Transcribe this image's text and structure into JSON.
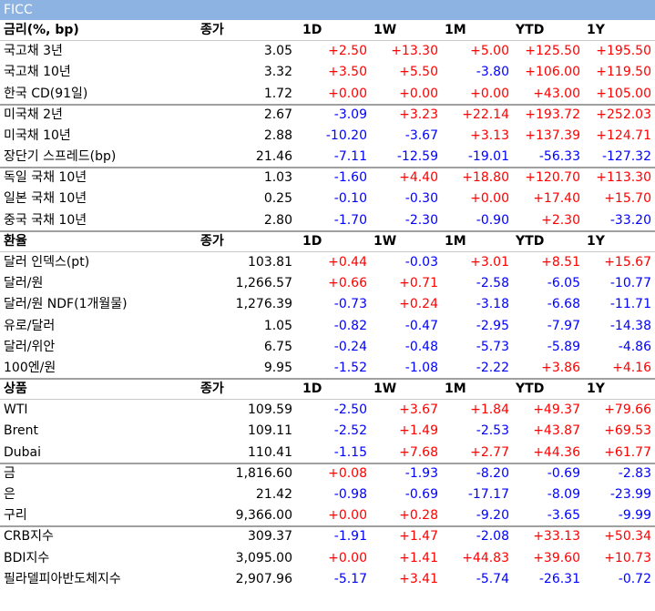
{
  "title": "FICC",
  "positive_color": "#ff0000",
  "negative_color": "#0000ff",
  "sections": [
    {
      "header": [
        "금리(%, bp)",
        "종가",
        "1D",
        "1W",
        "1M",
        "YTD",
        "1Y"
      ],
      "groups": [
        [
          [
            "국고채 3년",
            "3.05",
            "+2.50",
            "+13.30",
            "+5.00",
            "+125.50",
            "+195.50"
          ],
          [
            "국고채 10년",
            "3.32",
            "+3.50",
            "+5.50",
            "-3.80",
            "+106.00",
            "+119.50"
          ],
          [
            "한국 CD(91일)",
            "1.72",
            "+0.00",
            "+0.00",
            "+0.00",
            "+43.00",
            "+105.00"
          ]
        ],
        [
          [
            "미국채 2년",
            "2.67",
            "-3.09",
            "+3.23",
            "+22.14",
            "+193.72",
            "+252.03"
          ],
          [
            "미국채 10년",
            "2.88",
            "-10.20",
            "-3.67",
            "+3.13",
            "+137.39",
            "+124.71"
          ],
          [
            "장단기 스프레드(bp)",
            "21.46",
            "-7.11",
            "-12.59",
            "-19.01",
            "-56.33",
            "-127.32"
          ]
        ],
        [
          [
            "독일 국채 10년",
            "1.03",
            "-1.60",
            "+4.40",
            "+18.80",
            "+120.70",
            "+113.30"
          ],
          [
            "일본 국채 10년",
            "0.25",
            "-0.10",
            "-0.30",
            "+0.00",
            "+17.40",
            "+15.70"
          ],
          [
            "중국 국채 10년",
            "2.80",
            "-1.70",
            "-2.30",
            "-0.90",
            "+2.30",
            "-33.20"
          ]
        ]
      ]
    },
    {
      "header": [
        "환율",
        "종가",
        "1D",
        "1W",
        "1M",
        "YTD",
        "1Y"
      ],
      "groups": [
        [
          [
            "달러 인덱스(pt)",
            "103.81",
            "+0.44",
            "-0.03",
            "+3.01",
            "+8.51",
            "+15.67"
          ],
          [
            "달러/원",
            "1,266.57",
            "+0.66",
            "+0.71",
            "-2.58",
            "-6.05",
            "-10.77"
          ],
          [
            "달러/원 NDF(1개월물)",
            "1,276.39",
            "-0.73",
            "+0.24",
            "-3.18",
            "-6.68",
            "-11.71"
          ],
          [
            "유로/달러",
            "1.05",
            "-0.82",
            "-0.47",
            "-2.95",
            "-7.97",
            "-14.38"
          ],
          [
            "달러/위안",
            "6.75",
            "-0.24",
            "-0.48",
            "-5.73",
            "-5.89",
            "-4.86"
          ],
          [
            "100엔/원",
            "9.95",
            "-1.52",
            "-1.08",
            "-2.22",
            "+3.86",
            "+4.16"
          ]
        ]
      ]
    },
    {
      "header": [
        "상품",
        "종가",
        "1D",
        "1W",
        "1M",
        "YTD",
        "1Y"
      ],
      "groups": [
        [
          [
            "WTI",
            "109.59",
            "-2.50",
            "+3.67",
            "+1.84",
            "+49.37",
            "+79.66"
          ],
          [
            "Brent",
            "109.11",
            "-2.52",
            "+1.49",
            "-2.53",
            "+43.87",
            "+69.53"
          ],
          [
            "Dubai",
            "110.41",
            "-1.15",
            "+7.68",
            "+2.77",
            "+44.36",
            "+61.77"
          ]
        ],
        [
          [
            "금",
            "1,816.60",
            "+0.08",
            "-1.93",
            "-8.20",
            "-0.69",
            "-2.83"
          ],
          [
            "은",
            "21.42",
            "-0.98",
            "-0.69",
            "-17.17",
            "-8.09",
            "-23.99"
          ],
          [
            "구리",
            "9,366.00",
            "+0.00",
            "+0.28",
            "-9.20",
            "-3.65",
            "-9.99"
          ]
        ],
        [
          [
            "CRB지수",
            "309.37",
            "-1.91",
            "+1.47",
            "-2.08",
            "+33.13",
            "+50.34"
          ],
          [
            "BDI지수",
            "3,095.00",
            "+0.00",
            "+1.41",
            "+44.83",
            "+39.60",
            "+10.73"
          ],
          [
            "필라델피아반도체지수",
            "2,907.96",
            "-5.17",
            "+3.41",
            "-5.74",
            "-26.31",
            "-0.72"
          ]
        ]
      ]
    }
  ]
}
